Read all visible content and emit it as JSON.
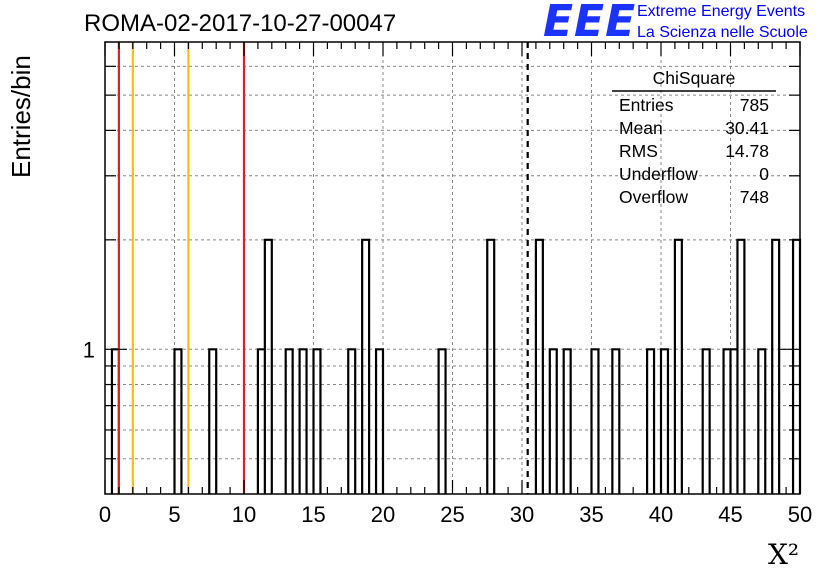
{
  "run_title": "ROMA-02-2017-10-27-00047",
  "logo": {
    "mark": "EEE",
    "line1": "Extreme Energy Events",
    "line2": "La Scienza nelle Scuole",
    "color": "#0000ff"
  },
  "chart_data": {
    "type": "bar",
    "histogram": "step",
    "xlabel": "X²",
    "ylabel": "Entries/bin",
    "xlim": [
      0,
      50
    ],
    "ylim": [
      0.4,
      7
    ],
    "log_scale_y": true,
    "grid": true,
    "bin_width": 0.5,
    "x_ticks": [
      "0",
      "5",
      "10",
      "15",
      "20",
      "25",
      "30",
      "35",
      "40",
      "45",
      "50"
    ],
    "y_ticks": [
      "1"
    ],
    "bins": [
      {
        "x": 0.5,
        "value": 1
      },
      {
        "x": 5.0,
        "value": 1
      },
      {
        "x": 7.5,
        "value": 1
      },
      {
        "x": 11.0,
        "value": 1
      },
      {
        "x": 11.5,
        "value": 2
      },
      {
        "x": 13.0,
        "value": 1
      },
      {
        "x": 14.0,
        "value": 1
      },
      {
        "x": 15.0,
        "value": 1
      },
      {
        "x": 17.5,
        "value": 1
      },
      {
        "x": 18.5,
        "value": 2
      },
      {
        "x": 19.5,
        "value": 1
      },
      {
        "x": 24.0,
        "value": 1
      },
      {
        "x": 27.5,
        "value": 2
      },
      {
        "x": 31.0,
        "value": 2
      },
      {
        "x": 32.0,
        "value": 1
      },
      {
        "x": 33.0,
        "value": 1
      },
      {
        "x": 35.0,
        "value": 1
      },
      {
        "x": 36.5,
        "value": 1
      },
      {
        "x": 39.0,
        "value": 1
      },
      {
        "x": 40.0,
        "value": 1
      },
      {
        "x": 41.0,
        "value": 2
      },
      {
        "x": 43.0,
        "value": 1
      },
      {
        "x": 44.5,
        "value": 1
      },
      {
        "x": 45.0,
        "value": 1
      },
      {
        "x": 45.5,
        "value": 2
      },
      {
        "x": 47.0,
        "value": 1
      },
      {
        "x": 48.0,
        "value": 2
      },
      {
        "x": 49.5,
        "value": 2
      }
    ],
    "vertical_lines": [
      {
        "x": 1.0,
        "color": "#dd2222",
        "style": "solid"
      },
      {
        "x": 2.0,
        "color": "#f2c012",
        "style": "solid"
      },
      {
        "x": 6.0,
        "color": "#f2c012",
        "style": "solid"
      },
      {
        "x": 10.0,
        "color": "#dd2222",
        "style": "solid"
      },
      {
        "x": 30.41,
        "color": "#000000",
        "style": "dashed"
      }
    ],
    "stats_box": {
      "title": "ChiSquare",
      "rows": [
        {
          "label": "Entries",
          "value": "785"
        },
        {
          "label": "Mean",
          "value": "30.41"
        },
        {
          "label": "RMS",
          "value": "14.78"
        },
        {
          "label": "Underflow",
          "value": "0"
        },
        {
          "label": "Overflow",
          "value": "748"
        }
      ]
    }
  }
}
